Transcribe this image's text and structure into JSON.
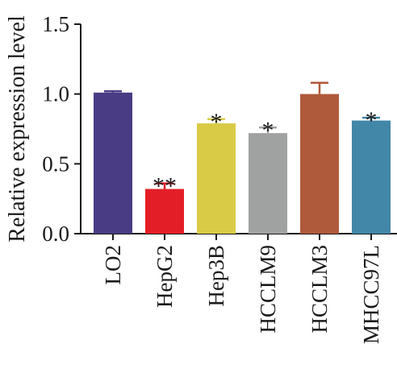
{
  "chart_data": {
    "type": "bar",
    "title": "",
    "xlabel": "",
    "ylabel": "Relative expression level",
    "ylim": [
      0,
      1.5
    ],
    "yticks": [
      "0.0",
      "0.5",
      "1.0",
      "1.5"
    ],
    "grid": false,
    "categories": [
      "LO2",
      "HepG2",
      "Hep3B",
      "HCCLM9",
      "HCCLM3",
      "MHCC97L"
    ],
    "values": [
      1.01,
      0.32,
      0.79,
      0.72,
      1.0,
      0.81
    ],
    "errors": [
      0.01,
      0.04,
      0.03,
      0.04,
      0.08,
      0.02
    ],
    "annotations": [
      "",
      "**",
      "*",
      "*",
      "",
      "*"
    ],
    "colors": [
      "#4a3c84",
      "#e41e26",
      "#d9cb45",
      "#a0a2a1",
      "#b05a3c",
      "#4286a8"
    ]
  }
}
